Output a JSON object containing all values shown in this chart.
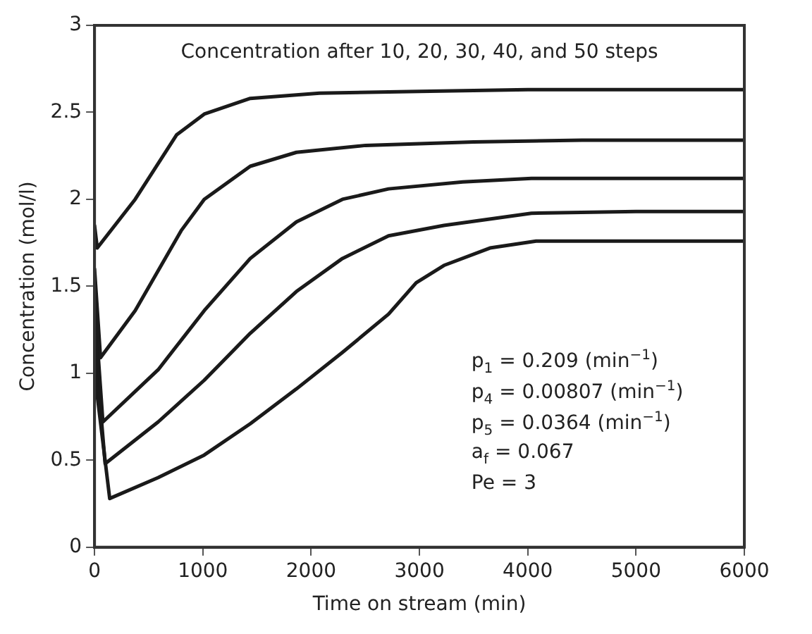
{
  "chart_data": {
    "type": "line",
    "xlabel": "Time on stream (min)",
    "ylabel": "Concentration (mol/l)",
    "annotations": [
      "Concentration after 10, 20, 30, 40, and 50 steps",
      "p$_{1}$ = 0.209 (min$^{−1}$)",
      "p$_{4}$ = 0.00807 (min$^{−1}$)",
      "p$_{5}$ = 0.0364 (min$^{−1}$)",
      "a$_{f}$ = 0.067",
      "Pe = 3"
    ],
    "xlim": [
      0,
      6000
    ],
    "xticks": [
      0,
      1000,
      2000,
      3000,
      4000,
      5000,
      6000
    ],
    "ylim": [
      0,
      3
    ],
    "yticks": [
      0,
      0.5,
      1,
      1.5,
      2,
      2.5,
      3
    ],
    "grid": false,
    "legend": false,
    "marker": "none",
    "line_style": "solid",
    "series": [
      {
        "color": "#1a1a1a",
        "x": [
          0,
          25,
          375,
          757,
          1013,
          1438,
          2077,
          3000,
          4000,
          6000
        ],
        "values": [
          1.85,
          1.72,
          2.0,
          2.37,
          2.49,
          2.58,
          2.61,
          2.62,
          2.63,
          2.63
        ]
      },
      {
        "color": "#1a1a1a",
        "x": [
          0,
          55,
          375,
          800,
          1013,
          1438,
          1864,
          2502,
          3500,
          4500,
          6000
        ],
        "values": [
          1.6,
          1.09,
          1.36,
          1.82,
          2.0,
          2.19,
          2.27,
          2.31,
          2.33,
          2.34,
          2.34
        ]
      },
      {
        "color": "#1a1a1a",
        "x": [
          0,
          77,
          587,
          1013,
          1438,
          1864,
          2289,
          2715,
          3400,
          4034,
          5000,
          6000
        ],
        "values": [
          1.4,
          0.72,
          1.02,
          1.36,
          1.66,
          1.87,
          2.0,
          2.06,
          2.1,
          2.12,
          2.12,
          2.12
        ]
      },
      {
        "color": "#1a1a1a",
        "x": [
          0,
          98,
          587,
          1013,
          1438,
          1864,
          2289,
          2715,
          3226,
          4034,
          5000,
          6000
        ],
        "values": [
          1.2,
          0.48,
          0.72,
          0.96,
          1.23,
          1.47,
          1.66,
          1.79,
          1.85,
          1.92,
          1.93,
          1.93
        ]
      },
      {
        "color": "#1a1a1a",
        "x": [
          0,
          140,
          587,
          1013,
          1438,
          1864,
          2289,
          2715,
          2970,
          3226,
          3651,
          4077,
          5000,
          6000
        ],
        "values": [
          1.0,
          0.28,
          0.4,
          0.53,
          0.71,
          0.91,
          1.12,
          1.34,
          1.52,
          1.62,
          1.72,
          1.76,
          1.76,
          1.76
        ]
      }
    ]
  }
}
